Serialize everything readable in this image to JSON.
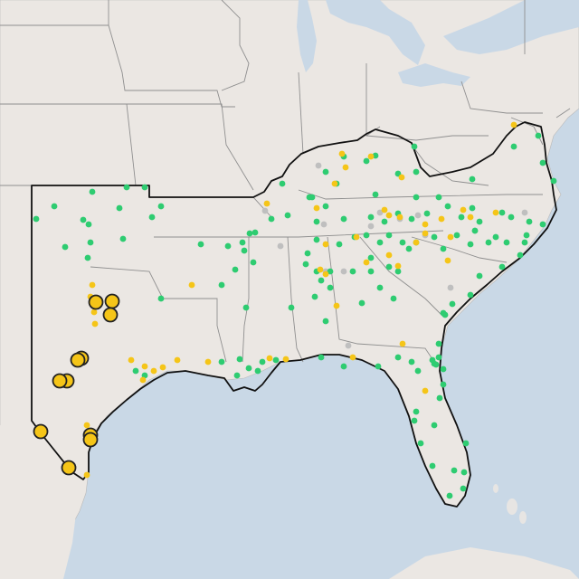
{
  "map": {
    "colors": {
      "water": "#c9d8e6",
      "land": "#ebe7e3",
      "green": "#2ecc71",
      "yellow": "#f5c518",
      "gray": "#bfbfbf",
      "outline": "#111111"
    },
    "marker_types": [
      "small-green-dot",
      "small-yellow-dot",
      "small-gray-dot",
      "large-yellow-circle"
    ],
    "counts": {
      "green": 170,
      "yellow": 60,
      "gray": 15,
      "large_yellow": 11
    }
  }
}
